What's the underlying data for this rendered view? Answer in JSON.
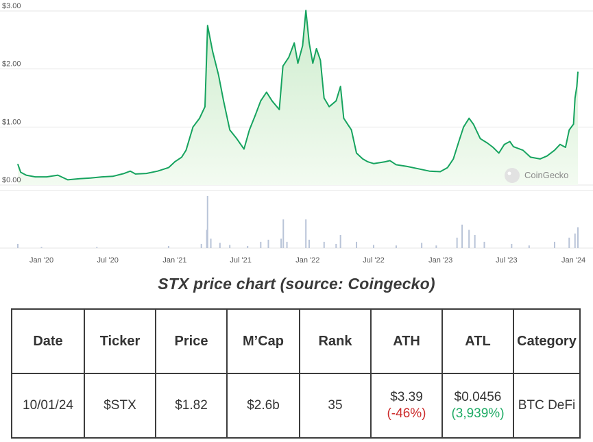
{
  "caption": "STX price chart (source: Coingecko)",
  "watermark": "CoinGecko",
  "colors": {
    "line": "#16a35f",
    "fill_top": "#cdeccd",
    "fill_bottom": "#f3fbf1",
    "volume": "#b9c4d8",
    "grid": "#e6e6e6",
    "negative": "#cc2a2a",
    "positive": "#1fab65"
  },
  "chart_data": {
    "type": "area",
    "title": "",
    "xlabel": "",
    "ylabel": "",
    "ylim": [
      0,
      3
    ],
    "y_ticks": [
      "$3.00",
      "$2.00",
      "$1.00",
      "$0.00"
    ],
    "y_tick_values": [
      3,
      2,
      1,
      0
    ],
    "x_ticks": [
      "Jan '20",
      "Jul '20",
      "Jan '21",
      "Jul '21",
      "Jan '22",
      "Jul '22",
      "Jan '23",
      "Jul '23",
      "Jan '24"
    ],
    "x_tick_dates": [
      "2020-01-01",
      "2020-07-01",
      "2021-01-01",
      "2021-07-01",
      "2022-01-01",
      "2022-07-01",
      "2023-01-01",
      "2023-07-01",
      "2024-01-01"
    ],
    "grid": true,
    "legend": "none",
    "price_series": {
      "name": "",
      "points": [
        [
          "2019-10-28",
          0.36
        ],
        [
          "2019-11-05",
          0.22
        ],
        [
          "2019-11-20",
          0.17
        ],
        [
          "2019-12-15",
          0.14
        ],
        [
          "2020-01-15",
          0.14
        ],
        [
          "2020-02-15",
          0.17
        ],
        [
          "2020-03-13",
          0.09
        ],
        [
          "2020-04-15",
          0.11
        ],
        [
          "2020-05-15",
          0.12
        ],
        [
          "2020-06-15",
          0.14
        ],
        [
          "2020-07-15",
          0.15
        ],
        [
          "2020-08-15",
          0.2
        ],
        [
          "2020-09-01",
          0.24
        ],
        [
          "2020-09-15",
          0.19
        ],
        [
          "2020-10-15",
          0.2
        ],
        [
          "2020-11-15",
          0.24
        ],
        [
          "2020-12-15",
          0.3
        ],
        [
          "2021-01-01",
          0.4
        ],
        [
          "2021-01-20",
          0.48
        ],
        [
          "2021-02-01",
          0.6
        ],
        [
          "2021-02-20",
          1.0
        ],
        [
          "2021-03-10",
          1.15
        ],
        [
          "2021-03-25",
          1.35
        ],
        [
          "2021-04-01",
          2.75
        ],
        [
          "2021-04-15",
          2.3
        ],
        [
          "2021-05-01",
          1.9
        ],
        [
          "2021-05-15",
          1.45
        ],
        [
          "2021-06-01",
          0.95
        ],
        [
          "2021-06-20",
          0.8
        ],
        [
          "2021-07-10",
          0.62
        ],
        [
          "2021-07-25",
          0.95
        ],
        [
          "2021-08-10",
          1.2
        ],
        [
          "2021-08-25",
          1.45
        ],
        [
          "2021-09-10",
          1.6
        ],
        [
          "2021-09-25",
          1.45
        ],
        [
          "2021-10-15",
          1.3
        ],
        [
          "2021-10-25",
          2.05
        ],
        [
          "2021-11-10",
          2.2
        ],
        [
          "2021-11-25",
          2.45
        ],
        [
          "2021-12-05",
          2.1
        ],
        [
          "2021-12-18",
          2.4
        ],
        [
          "2021-12-27",
          3.01
        ],
        [
          "2022-01-05",
          2.45
        ],
        [
          "2022-01-15",
          2.1
        ],
        [
          "2022-01-25",
          2.35
        ],
        [
          "2022-02-05",
          2.15
        ],
        [
          "2022-02-15",
          1.5
        ],
        [
          "2022-03-01",
          1.35
        ],
        [
          "2022-03-20",
          1.45
        ],
        [
          "2022-04-01",
          1.7
        ],
        [
          "2022-04-10",
          1.15
        ],
        [
          "2022-05-01",
          0.95
        ],
        [
          "2022-05-15",
          0.55
        ],
        [
          "2022-06-01",
          0.45
        ],
        [
          "2022-06-15",
          0.4
        ],
        [
          "2022-07-01",
          0.37
        ],
        [
          "2022-08-01",
          0.4
        ],
        [
          "2022-08-15",
          0.42
        ],
        [
          "2022-09-01",
          0.35
        ],
        [
          "2022-10-01",
          0.32
        ],
        [
          "2022-11-01",
          0.28
        ],
        [
          "2022-12-01",
          0.24
        ],
        [
          "2022-12-31",
          0.23
        ],
        [
          "2023-01-20",
          0.3
        ],
        [
          "2023-02-05",
          0.45
        ],
        [
          "2023-02-20",
          0.75
        ],
        [
          "2023-03-05",
          1.0
        ],
        [
          "2023-03-20",
          1.15
        ],
        [
          "2023-04-01",
          1.05
        ],
        [
          "2023-04-20",
          0.8
        ],
        [
          "2023-05-10",
          0.72
        ],
        [
          "2023-05-25",
          0.65
        ],
        [
          "2023-06-10",
          0.55
        ],
        [
          "2023-06-25",
          0.7
        ],
        [
          "2023-07-10",
          0.75
        ],
        [
          "2023-07-20",
          0.66
        ],
        [
          "2023-08-15",
          0.6
        ],
        [
          "2023-09-05",
          0.48
        ],
        [
          "2023-10-01",
          0.45
        ],
        [
          "2023-10-20",
          0.5
        ],
        [
          "2023-11-10",
          0.6
        ],
        [
          "2023-11-25",
          0.7
        ],
        [
          "2023-12-10",
          0.65
        ],
        [
          "2023-12-20",
          0.95
        ],
        [
          "2024-01-01",
          1.05
        ],
        [
          "2024-01-05",
          1.5
        ],
        [
          "2024-01-10",
          1.7
        ],
        [
          "2024-01-13",
          1.95
        ]
      ]
    },
    "volume_series": {
      "name": "",
      "points": [
        [
          "2019-10-28",
          0.08
        ],
        [
          "2020-01-01",
          0.02
        ],
        [
          "2020-06-01",
          0.02
        ],
        [
          "2020-12-15",
          0.04
        ],
        [
          "2021-03-15",
          0.08
        ],
        [
          "2021-03-30",
          0.35
        ],
        [
          "2021-04-01",
          1.0
        ],
        [
          "2021-04-10",
          0.18
        ],
        [
          "2021-05-05",
          0.1
        ],
        [
          "2021-06-01",
          0.06
        ],
        [
          "2021-07-20",
          0.04
        ],
        [
          "2021-08-25",
          0.12
        ],
        [
          "2021-09-15",
          0.16
        ],
        [
          "2021-10-20",
          0.18
        ],
        [
          "2021-10-26",
          0.55
        ],
        [
          "2021-11-05",
          0.12
        ],
        [
          "2021-12-27",
          0.55
        ],
        [
          "2022-01-05",
          0.16
        ],
        [
          "2022-02-15",
          0.12
        ],
        [
          "2022-03-20",
          0.08
        ],
        [
          "2022-04-01",
          0.25
        ],
        [
          "2022-05-15",
          0.12
        ],
        [
          "2022-07-01",
          0.06
        ],
        [
          "2022-09-01",
          0.05
        ],
        [
          "2022-11-10",
          0.1
        ],
        [
          "2022-12-20",
          0.05
        ],
        [
          "2023-02-15",
          0.2
        ],
        [
          "2023-03-01",
          0.45
        ],
        [
          "2023-03-20",
          0.35
        ],
        [
          "2023-04-05",
          0.25
        ],
        [
          "2023-05-01",
          0.12
        ],
        [
          "2023-07-15",
          0.08
        ],
        [
          "2023-09-01",
          0.05
        ],
        [
          "2023-11-10",
          0.12
        ],
        [
          "2023-12-20",
          0.2
        ],
        [
          "2024-01-05",
          0.28
        ],
        [
          "2024-01-13",
          0.4
        ]
      ]
    }
  },
  "table": {
    "headers": [
      "Date",
      "Ticker",
      "Price",
      "M’Cap",
      "Rank",
      "ATH",
      "ATL",
      "Category"
    ],
    "row": {
      "date": "10/01/24",
      "ticker": "$STX",
      "price": "$1.82",
      "mcap": "$2.6b",
      "rank": "35",
      "ath": "$3.39",
      "ath_change": "(-46%)",
      "atl": "$0.0456",
      "atl_change": "(3,939%)",
      "category": "BTC DeFi"
    }
  }
}
